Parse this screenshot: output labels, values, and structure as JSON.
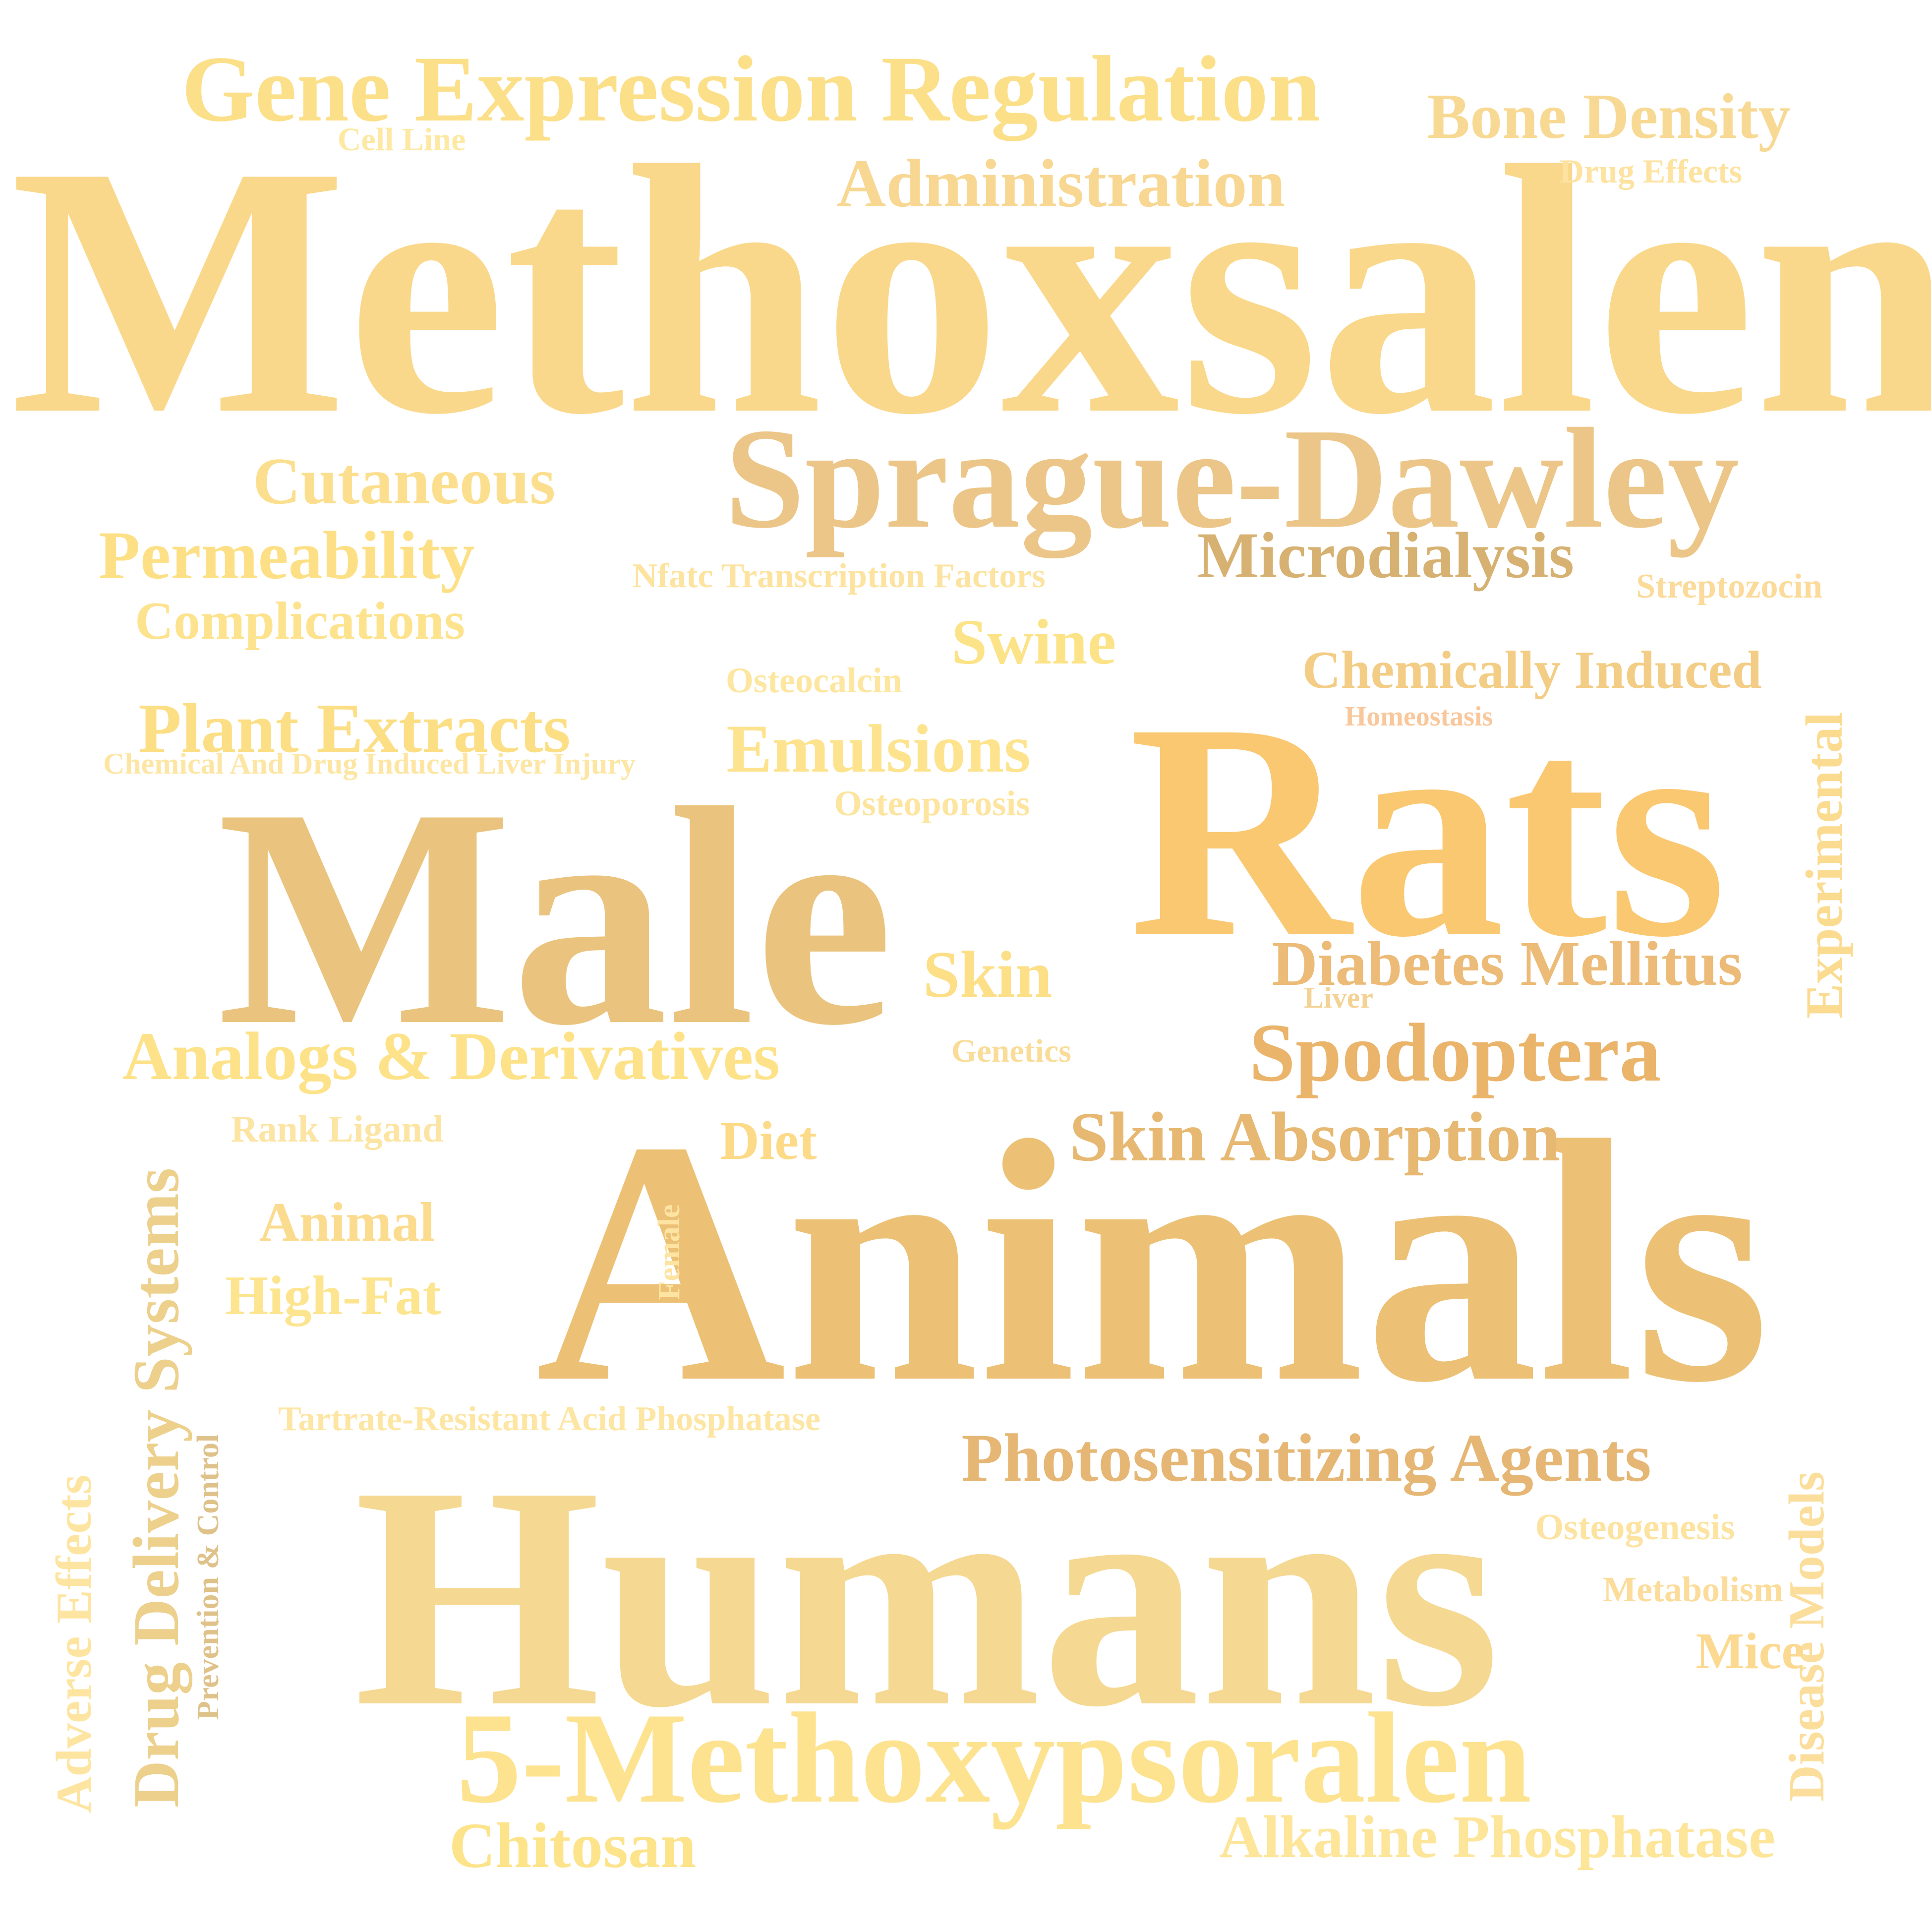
{
  "words": [
    {
      "text": "Methoxsalen",
      "color": "#fad88b"
    },
    {
      "text": "Animals",
      "color": "#ecc176"
    },
    {
      "text": "Humans",
      "color": "#f5d892"
    },
    {
      "text": "Male",
      "color": "#eac47e"
    },
    {
      "text": "Rats",
      "color": "#fac871"
    },
    {
      "text": "Sprague-Dawley",
      "color": "#ecc688"
    },
    {
      "text": "5-Methoxypsoralen",
      "color": "#fde38f"
    },
    {
      "text": "Gene Expression Regulation",
      "color": "#fcdf89"
    },
    {
      "text": "Bone Density",
      "color": "#f8d994"
    },
    {
      "text": "Cell Line",
      "color": "#fde9a3"
    },
    {
      "text": "Administration",
      "color": "#f8d792"
    },
    {
      "text": "Drug Effects",
      "color": "#fde2a0"
    },
    {
      "text": "Cutaneous",
      "color": "#fcdf8e"
    },
    {
      "text": "Permeability",
      "color": "#fde085"
    },
    {
      "text": "Microdialysis",
      "color": "#d6b171"
    },
    {
      "text": "Nfatc Transcription Factors",
      "color": "#fde3a0"
    },
    {
      "text": "Streptozocin",
      "color": "#fbda9a"
    },
    {
      "text": "Complications",
      "color": "#fde38e"
    },
    {
      "text": "Swine",
      "color": "#fde387"
    },
    {
      "text": "Chemically Induced",
      "color": "#f3cd85"
    },
    {
      "text": "Experimental",
      "color": "#fbdb90"
    },
    {
      "text": "Osteocalcin",
      "color": "#fde6a0"
    },
    {
      "text": "Homeostasis",
      "color": "#f8c79b"
    },
    {
      "text": "Plant Extracts",
      "color": "#fcde85"
    },
    {
      "text": "Emulsions",
      "color": "#fde38d"
    },
    {
      "text": "Chemical And Drug Induced Liver Injury",
      "color": "#fde6a4"
    },
    {
      "text": "Osteoporosis",
      "color": "#fde5a0"
    },
    {
      "text": "Skin",
      "color": "#fcdf86"
    },
    {
      "text": "Diabetes Mellitus",
      "color": "#ecbb78"
    },
    {
      "text": "Liver",
      "color": "#f4d293"
    },
    {
      "text": "Analogs & Derivatives",
      "color": "#fde289"
    },
    {
      "text": "Genetics",
      "color": "#f9dc98"
    },
    {
      "text": "Spodoptera",
      "color": "#eab46a"
    },
    {
      "text": "Drug Delivery Systems",
      "color": "#ecd08c"
    },
    {
      "text": "Rank Ligand",
      "color": "#fce4a3"
    },
    {
      "text": "Diet",
      "color": "#fdda87"
    },
    {
      "text": "Skin Absorption",
      "color": "#e6b872"
    },
    {
      "text": "Animal",
      "color": "#fbdb8d"
    },
    {
      "text": "Female",
      "color": "#fde4a3"
    },
    {
      "text": "High-Fat",
      "color": "#fde48f"
    },
    {
      "text": "Prevention & Control",
      "color": "#dfc28a"
    },
    {
      "text": "Tartrate-Resistant Acid Phosphatase",
      "color": "#fde6a3"
    },
    {
      "text": "Photosensitizing Agents",
      "color": "#e5b674"
    },
    {
      "text": "Adverse Effects",
      "color": "#fde5a1"
    },
    {
      "text": "Osteogenesis",
      "color": "#fde3a0"
    },
    {
      "text": "Disease Models",
      "color": "#fbde9b"
    },
    {
      "text": "Metabolism",
      "color": "#fcdc9a"
    },
    {
      "text": "Mice",
      "color": "#fcd990"
    },
    {
      "text": "Chitosan",
      "color": "#fde38a"
    },
    {
      "text": "Alkaline Phosphatase",
      "color": "#fde599"
    }
  ]
}
